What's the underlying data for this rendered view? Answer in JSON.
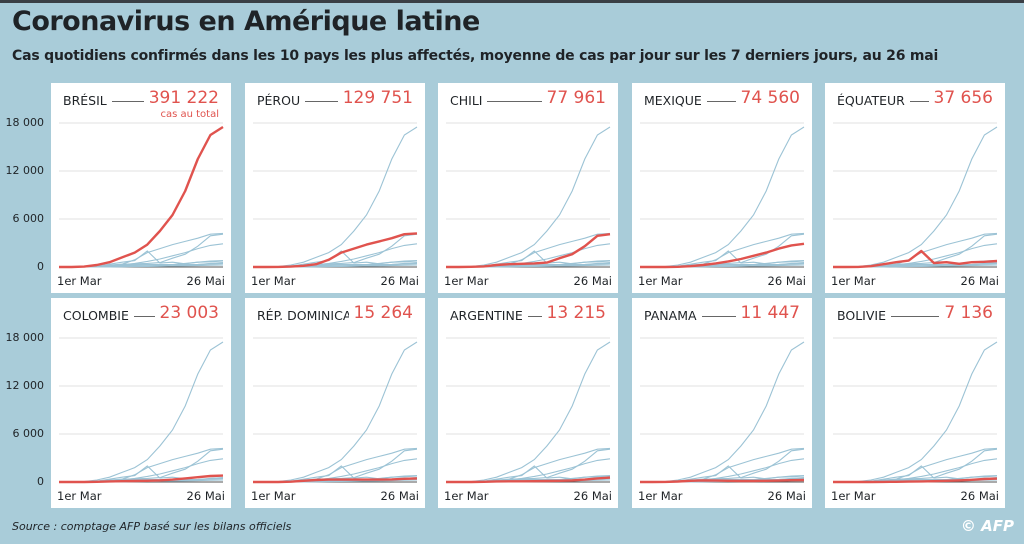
{
  "header": {
    "title": "Coronavirus en Amérique latine",
    "subtitle": "Cas quotidiens confirmés dans les 10 pays les plus affectés, moyenne de cas par jour sur les 7 derniers jours, au 26 mai"
  },
  "footer": {
    "source": "Source : comptage AFP basé sur les bilans officiels",
    "logo": "© AFP"
  },
  "colors": {
    "background": "#a9ccd9",
    "highlight": "#e0534e",
    "context": "#9cc3d5",
    "panel": "#ffffff"
  },
  "chart_data": {
    "type": "line",
    "layout": "small-multiples",
    "ylim": [
      0,
      18000
    ],
    "yticks": [
      0,
      6000,
      12000,
      18000
    ],
    "ytick_labels": [
      "0",
      "6 000",
      "12 000",
      "18 000"
    ],
    "x_start_label": "1er Mar",
    "x_end_label": "26 Mai",
    "x": [
      "1 Mar",
      "8 Mar",
      "15 Mar",
      "22 Mar",
      "29 Mar",
      "5 Avr",
      "12 Avr",
      "19 Avr",
      "26 Avr",
      "3 Mai",
      "10 Mai",
      "17 Mai",
      "24 Mai",
      "26 Mai"
    ],
    "total_note": "cas au total",
    "series": [
      {
        "name": "BRÉSIL",
        "total": "391 222",
        "values": [
          0,
          5,
          50,
          250,
          600,
          1200,
          1800,
          2800,
          4500,
          6500,
          9500,
          13500,
          16500,
          17500
        ]
      },
      {
        "name": "PÉROU",
        "total": "129 751",
        "values": [
          0,
          0,
          10,
          50,
          150,
          350,
          900,
          1800,
          2300,
          2800,
          3200,
          3600,
          4100,
          4200
        ]
      },
      {
        "name": "CHILI",
        "total": "77 961",
        "values": [
          0,
          0,
          20,
          80,
          250,
          350,
          400,
          450,
          550,
          1100,
          1600,
          2600,
          3900,
          4100
        ]
      },
      {
        "name": "MEXIQUE",
        "total": "74 560",
        "values": [
          0,
          0,
          5,
          30,
          100,
          250,
          450,
          700,
          1000,
          1400,
          1800,
          2300,
          2700,
          2900
        ]
      },
      {
        "name": "ÉQUATEUR",
        "total": "37 656",
        "values": [
          0,
          0,
          10,
          100,
          350,
          600,
          800,
          2000,
          500,
          600,
          400,
          600,
          650,
          750
        ]
      },
      {
        "name": "COLOMBIE",
        "total": "23 003",
        "values": [
          0,
          0,
          5,
          30,
          70,
          100,
          120,
          150,
          200,
          300,
          450,
          600,
          750,
          800
        ]
      },
      {
        "name": "RÉP. DOMINICAINE",
        "total": "15 264",
        "values": [
          0,
          0,
          5,
          40,
          150,
          250,
          300,
          300,
          300,
          300,
          300,
          320,
          400,
          450
        ]
      },
      {
        "name": "ARGENTINE",
        "total": "13 215",
        "values": [
          0,
          0,
          5,
          30,
          70,
          90,
          90,
          100,
          120,
          150,
          200,
          300,
          450,
          550
        ]
      },
      {
        "name": "PANAMA",
        "total": "11 447",
        "values": [
          0,
          0,
          10,
          60,
          150,
          200,
          170,
          150,
          130,
          130,
          150,
          180,
          220,
          250
        ]
      },
      {
        "name": "BOLIVIE",
        "total": "7 136",
        "values": [
          0,
          0,
          0,
          5,
          15,
          30,
          50,
          80,
          100,
          150,
          200,
          280,
          380,
          420
        ]
      }
    ]
  }
}
